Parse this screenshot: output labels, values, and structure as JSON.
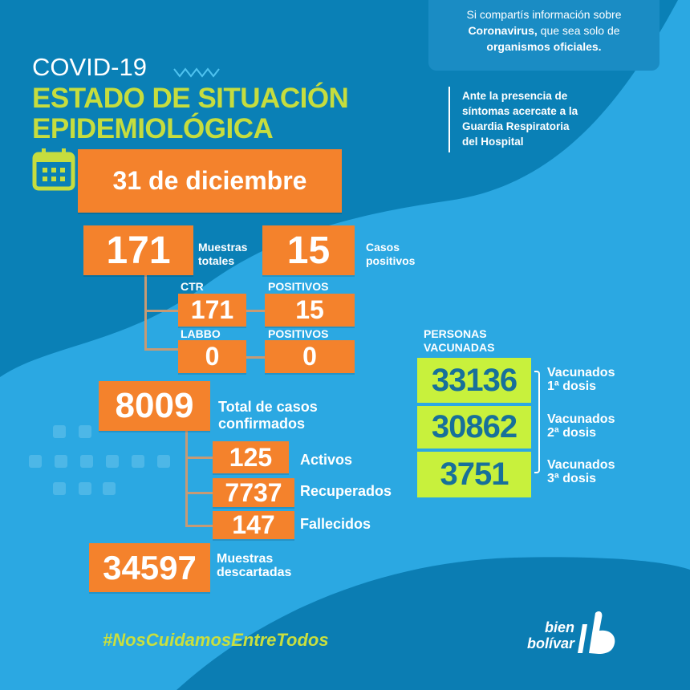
{
  "notice": {
    "line1": "Si compartís información sobre",
    "line2_bold": "Coronavirus,",
    "line2_rest": " que sea solo de",
    "line3": "organismos oficiales."
  },
  "advice": [
    "Ante la presencia de",
    "síntomas acercate a la",
    "Guardia Respiratoria",
    "del Hospital"
  ],
  "header": {
    "covid": "COVID-19",
    "title1": "ESTADO DE SITUACIÓN",
    "title2": "EPIDEMIOLÓGICA"
  },
  "date": "31 de diciembre",
  "samples": {
    "total": "171",
    "total_label": [
      "Muestras",
      "totales"
    ],
    "positive": "15",
    "positive_label": [
      "Casos",
      "positivos"
    ],
    "ctr_label": "CTR",
    "ctr": "171",
    "ctr_pos_label": "POSITIVOS",
    "ctr_pos": "15",
    "labbo_label": "LABBO",
    "labbo": "0",
    "labbo_pos_label": "POSITIVOS",
    "labbo_pos": "0"
  },
  "cases": {
    "confirmed": "8009",
    "confirmed_label": [
      "Total de casos",
      "confirmados"
    ],
    "active": "125",
    "active_label": "Activos",
    "recovered": "7737",
    "recovered_label": "Recuperados",
    "deceased": "147",
    "deceased_label": "Fallecidos",
    "discarded": "34597",
    "discarded_label": [
      "Muestras",
      "descartadas"
    ]
  },
  "vaccines": {
    "title": [
      "PERSONAS",
      "VACUNADAS"
    ],
    "items": [
      {
        "value": "33136",
        "label": [
          "Vacunados",
          "1ª dosis"
        ]
      },
      {
        "value": "30862",
        "label": [
          "Vacunados",
          "2ª dosis"
        ]
      },
      {
        "value": "3751",
        "label": [
          "Vacunados",
          "3ª dosis"
        ]
      }
    ]
  },
  "hashtag": "#NosCuidamosEntreTodos",
  "logo": {
    "line1": "bien",
    "line2": "bolívar"
  },
  "colors": {
    "dark_blue": "#0a80b6",
    "light_blue": "#2ba8e2",
    "orange": "#f4822c",
    "lime": "#c8f13c",
    "title": "#c6dd3e"
  }
}
